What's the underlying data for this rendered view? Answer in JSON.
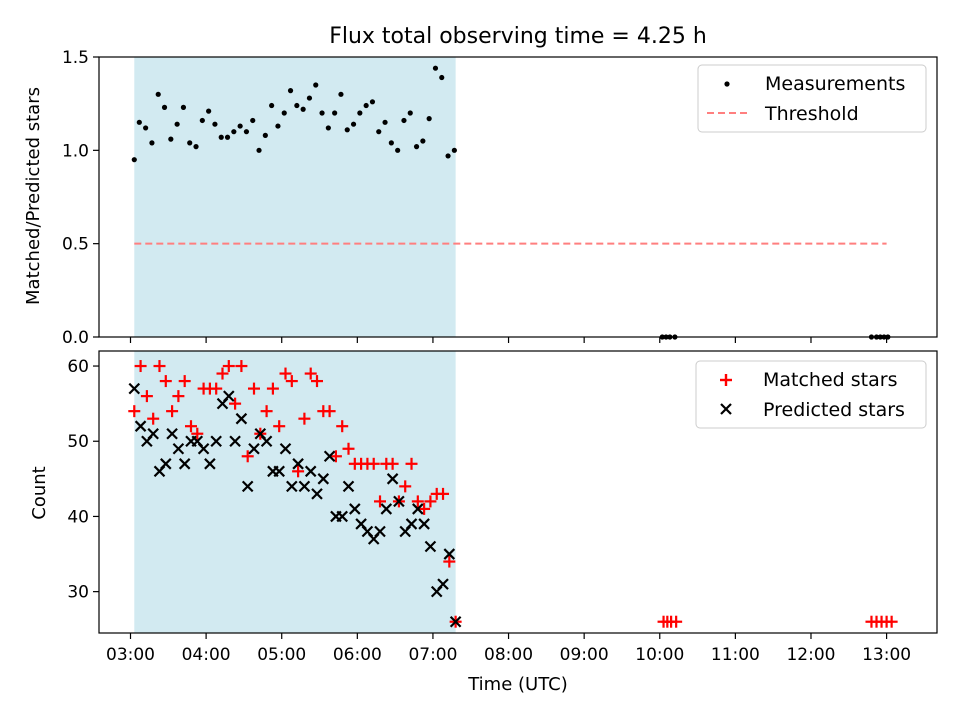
{
  "chart_data": {
    "title": "Flux total observing time = 4.25 h",
    "xlabel": "Time (UTC)",
    "x_ticks": [
      "03:00",
      "04:00",
      "05:00",
      "06:00",
      "07:00",
      "08:00",
      "09:00",
      "10:00",
      "11:00",
      "12:00",
      "13:00"
    ],
    "xlim": [
      "02:35",
      "13:40"
    ],
    "shaded_interval": [
      "03:03",
      "07:18"
    ],
    "colors": {
      "shade": "#add8e6",
      "matched": "#ff0000",
      "predicted": "#000000",
      "threshold": "#ff7f7f",
      "measurements": "#000000"
    },
    "panels": [
      {
        "type": "scatter",
        "ylabel": "Matched/Predicted stars",
        "ylim": [
          0,
          1.5
        ],
        "yticks": [
          "0.0",
          "0.5",
          "1.0",
          "1.5"
        ],
        "legend": {
          "placement": "top-right",
          "entries": [
            "Measurements",
            "Threshold"
          ]
        },
        "series": [
          {
            "name": "Measurements",
            "marker": "dot",
            "points": [
              [
                "03:03",
                0.95
              ],
              [
                "03:07",
                1.15
              ],
              [
                "03:12",
                1.12
              ],
              [
                "03:17",
                1.04
              ],
              [
                "03:22",
                1.3
              ],
              [
                "03:27",
                1.23
              ],
              [
                "03:32",
                1.06
              ],
              [
                "03:37",
                1.14
              ],
              [
                "03:42",
                1.23
              ],
              [
                "03:47",
                1.04
              ],
              [
                "03:52",
                1.02
              ],
              [
                "03:57",
                1.16
              ],
              [
                "04:02",
                1.21
              ],
              [
                "04:07",
                1.14
              ],
              [
                "04:12",
                1.07
              ],
              [
                "04:17",
                1.07
              ],
              [
                "04:22",
                1.1
              ],
              [
                "04:27",
                1.13
              ],
              [
                "04:32",
                1.1
              ],
              [
                "04:37",
                1.16
              ],
              [
                "04:42",
                1.0
              ],
              [
                "04:47",
                1.08
              ],
              [
                "04:52",
                1.24
              ],
              [
                "04:57",
                1.13
              ],
              [
                "05:02",
                1.2
              ],
              [
                "05:07",
                1.32
              ],
              [
                "05:12",
                1.24
              ],
              [
                "05:17",
                1.22
              ],
              [
                "05:22",
                1.28
              ],
              [
                "05:27",
                1.35
              ],
              [
                "05:32",
                1.2
              ],
              [
                "05:37",
                1.12
              ],
              [
                "05:42",
                1.2
              ],
              [
                "05:47",
                1.3
              ],
              [
                "05:52",
                1.11
              ],
              [
                "05:57",
                1.14
              ],
              [
                "06:02",
                1.2
              ],
              [
                "06:07",
                1.24
              ],
              [
                "06:12",
                1.26
              ],
              [
                "06:17",
                1.1
              ],
              [
                "06:22",
                1.15
              ],
              [
                "06:27",
                1.04
              ],
              [
                "06:32",
                1.0
              ],
              [
                "06:37",
                1.16
              ],
              [
                "06:42",
                1.2
              ],
              [
                "06:47",
                1.02
              ],
              [
                "06:52",
                1.05
              ],
              [
                "06:57",
                1.17
              ],
              [
                "07:02",
                1.44
              ],
              [
                "07:07",
                1.39
              ],
              [
                "07:12",
                0.97
              ],
              [
                "07:17",
                1.0
              ],
              [
                "10:02",
                0
              ],
              [
                "10:05",
                0
              ],
              [
                "10:08",
                0
              ],
              [
                "10:12",
                0
              ],
              [
                "12:48",
                0
              ],
              [
                "12:52",
                0
              ],
              [
                "12:55",
                0
              ],
              [
                "12:58",
                0
              ],
              [
                "13:01",
                0
              ]
            ]
          },
          {
            "name": "Threshold",
            "marker": "dashed-line",
            "points": [
              [
                "03:03",
                0.5
              ],
              [
                "13:00",
                0.5
              ]
            ]
          }
        ]
      },
      {
        "type": "scatter",
        "ylabel": "Count",
        "ylim": [
          24.5,
          62
        ],
        "yticks": [
          "30",
          "40",
          "50",
          "60"
        ],
        "legend": {
          "placement": "top-right",
          "entries": [
            "Matched stars",
            "Predicted stars"
          ]
        },
        "series": [
          {
            "name": "Matched stars",
            "marker": "plus",
            "points": [
              [
                "03:03",
                54
              ],
              [
                "03:08",
                60
              ],
              [
                "03:13",
                56
              ],
              [
                "03:18",
                53
              ],
              [
                "03:23",
                60
              ],
              [
                "03:28",
                58
              ],
              [
                "03:33",
                54
              ],
              [
                "03:38",
                56
              ],
              [
                "03:43",
                58
              ],
              [
                "03:48",
                52
              ],
              [
                "03:53",
                51
              ],
              [
                "03:58",
                57
              ],
              [
                "04:03",
                57
              ],
              [
                "04:08",
                57
              ],
              [
                "04:13",
                59
              ],
              [
                "04:18",
                60
              ],
              [
                "04:23",
                55
              ],
              [
                "04:28",
                60
              ],
              [
                "04:33",
                48
              ],
              [
                "04:38",
                57
              ],
              [
                "04:43",
                51
              ],
              [
                "04:48",
                54
              ],
              [
                "04:53",
                57
              ],
              [
                "04:58",
                52
              ],
              [
                "05:03",
                59
              ],
              [
                "05:08",
                58
              ],
              [
                "05:13",
                46
              ],
              [
                "05:18",
                53
              ],
              [
                "05:23",
                59
              ],
              [
                "05:28",
                58
              ],
              [
                "05:33",
                54
              ],
              [
                "05:38",
                54
              ],
              [
                "05:43",
                48
              ],
              [
                "05:48",
                52
              ],
              [
                "05:53",
                49
              ],
              [
                "05:58",
                47
              ],
              [
                "06:03",
                47
              ],
              [
                "06:08",
                47
              ],
              [
                "06:13",
                47
              ],
              [
                "06:18",
                42
              ],
              [
                "06:23",
                47
              ],
              [
                "06:28",
                47
              ],
              [
                "06:33",
                42
              ],
              [
                "06:38",
                44
              ],
              [
                "06:43",
                47
              ],
              [
                "06:48",
                42
              ],
              [
                "06:53",
                41
              ],
              [
                "06:58",
                42
              ],
              [
                "07:03",
                43
              ],
              [
                "07:08",
                43
              ],
              [
                "07:13",
                34
              ],
              [
                "07:18",
                26
              ],
              [
                "10:03",
                26
              ],
              [
                "10:06",
                26
              ],
              [
                "10:09",
                26
              ],
              [
                "10:13",
                26
              ],
              [
                "12:48",
                26
              ],
              [
                "12:52",
                26
              ],
              [
                "12:56",
                26
              ],
              [
                "13:00",
                26
              ],
              [
                "13:04",
                26
              ]
            ]
          },
          {
            "name": "Predicted stars",
            "marker": "x",
            "points": [
              [
                "03:03",
                57
              ],
              [
                "03:08",
                52
              ],
              [
                "03:13",
                50
              ],
              [
                "03:18",
                51
              ],
              [
                "03:23",
                46
              ],
              [
                "03:28",
                47
              ],
              [
                "03:33",
                51
              ],
              [
                "03:38",
                49
              ],
              [
                "03:43",
                47
              ],
              [
                "03:48",
                50
              ],
              [
                "03:53",
                50
              ],
              [
                "03:58",
                49
              ],
              [
                "04:03",
                47
              ],
              [
                "04:08",
                50
              ],
              [
                "04:13",
                55
              ],
              [
                "04:18",
                56
              ],
              [
                "04:23",
                50
              ],
              [
                "04:28",
                53
              ],
              [
                "04:33",
                44
              ],
              [
                "04:38",
                49
              ],
              [
                "04:43",
                51
              ],
              [
                "04:48",
                50
              ],
              [
                "04:53",
                46
              ],
              [
                "04:58",
                46
              ],
              [
                "05:03",
                49
              ],
              [
                "05:08",
                44
              ],
              [
                "05:13",
                47
              ],
              [
                "05:18",
                44
              ],
              [
                "05:23",
                46
              ],
              [
                "05:28",
                43
              ],
              [
                "05:33",
                45
              ],
              [
                "05:38",
                48
              ],
              [
                "05:43",
                40
              ],
              [
                "05:48",
                40
              ],
              [
                "05:53",
                44
              ],
              [
                "05:58",
                41
              ],
              [
                "06:03",
                39
              ],
              [
                "06:08",
                38
              ],
              [
                "06:13",
                37
              ],
              [
                "06:18",
                38
              ],
              [
                "06:23",
                41
              ],
              [
                "06:28",
                45
              ],
              [
                "06:33",
                42
              ],
              [
                "06:38",
                38
              ],
              [
                "06:43",
                39
              ],
              [
                "06:48",
                41
              ],
              [
                "06:53",
                39
              ],
              [
                "06:58",
                36
              ],
              [
                "07:03",
                30
              ],
              [
                "07:08",
                31
              ],
              [
                "07:13",
                35
              ],
              [
                "07:18",
                26
              ]
            ]
          }
        ]
      }
    ]
  }
}
